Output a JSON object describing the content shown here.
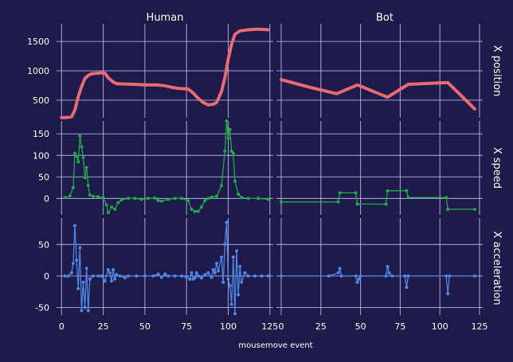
{
  "chart_data": {
    "type": "line",
    "xlabel": "mousemove event",
    "xticks": [
      0,
      25,
      50,
      75,
      100,
      125
    ],
    "xlim": [
      -3,
      127
    ],
    "columns": [
      "Human",
      "Bot"
    ],
    "grid": true,
    "colors": {
      "background": "#1e1a4a",
      "grid": "#b6b6e8",
      "position": "#e86b6f",
      "speed": "#21a84a",
      "acceleration": "#4f86e6"
    },
    "rows": [
      {
        "label": "X position",
        "color": "#e86b6f",
        "ylim": [
          200,
          1800
        ],
        "yticks": [
          "500",
          "1000",
          "1500"
        ],
        "ytick_values": [
          500,
          1000,
          1500
        ],
        "series": {
          "Human": [
            [
              0,
              200
            ],
            [
              3,
              205
            ],
            [
              6,
              215
            ],
            [
              8,
              330
            ],
            [
              10,
              560
            ],
            [
              12,
              730
            ],
            [
              14,
              870
            ],
            [
              16,
              920
            ],
            [
              18,
              950
            ],
            [
              21,
              960
            ],
            [
              24,
              965
            ],
            [
              26,
              960
            ],
            [
              28,
              880
            ],
            [
              31,
              810
            ],
            [
              33,
              780
            ],
            [
              38,
              775
            ],
            [
              44,
              770
            ],
            [
              50,
              760
            ],
            [
              58,
              758
            ],
            [
              62,
              745
            ],
            [
              66,
              720
            ],
            [
              70,
              700
            ],
            [
              76,
              690
            ],
            [
              79,
              620
            ],
            [
              82,
              530
            ],
            [
              85,
              460
            ],
            [
              88,
              420
            ],
            [
              91,
              430
            ],
            [
              93,
              460
            ],
            [
              96,
              650
            ],
            [
              98,
              880
            ],
            [
              100,
              1200
            ],
            [
              102,
              1450
            ],
            [
              104,
              1620
            ],
            [
              107,
              1680
            ],
            [
              112,
              1700
            ],
            [
              118,
              1710
            ],
            [
              124,
              1700
            ]
          ],
          "Bot": [
            [
              0,
              850
            ],
            [
              18,
              720
            ],
            [
              35,
              610
            ],
            [
              48,
              760
            ],
            [
              67,
              550
            ],
            [
              80,
              770
            ],
            [
              105,
              800
            ],
            [
              122,
              350
            ]
          ]
        }
      },
      {
        "label": "X speed",
        "color": "#21a84a",
        "ylim": [
          -38,
          180
        ],
        "yticks": [
          "0",
          "50",
          "100",
          "150"
        ],
        "ytick_values": [
          0,
          50,
          100,
          150
        ],
        "series": {
          "Human": [
            [
              2,
              2
            ],
            [
              5,
              6
            ],
            [
              7,
              25
            ],
            [
              8,
              105
            ],
            [
              9,
              98
            ],
            [
              10,
              85
            ],
            [
              11,
              145
            ],
            [
              12,
              120
            ],
            [
              13,
              95
            ],
            [
              14,
              48
            ],
            [
              15,
              72
            ],
            [
              16,
              30
            ],
            [
              17,
              8
            ],
            [
              19,
              5
            ],
            [
              22,
              4
            ],
            [
              25,
              2
            ],
            [
              27,
              -15
            ],
            [
              28,
              -33
            ],
            [
              30,
              -20
            ],
            [
              32,
              -25
            ],
            [
              34,
              -10
            ],
            [
              36,
              -3
            ],
            [
              40,
              0
            ],
            [
              44,
              0
            ],
            [
              48,
              -2
            ],
            [
              52,
              0
            ],
            [
              56,
              1
            ],
            [
              58,
              -5
            ],
            [
              60,
              -6
            ],
            [
              64,
              -2
            ],
            [
              68,
              0
            ],
            [
              72,
              0
            ],
            [
              76,
              -5
            ],
            [
              78,
              -25
            ],
            [
              80,
              -30
            ],
            [
              82,
              -30
            ],
            [
              84,
              -20
            ],
            [
              86,
              -5
            ],
            [
              88,
              0
            ],
            [
              90,
              3
            ],
            [
              93,
              5
            ],
            [
              96,
              30
            ],
            [
              98,
              110
            ],
            [
              99,
              180
            ],
            [
              100,
              140
            ],
            [
              101,
              160
            ],
            [
              102,
              110
            ],
            [
              103,
              105
            ],
            [
              104,
              40
            ],
            [
              106,
              10
            ],
            [
              108,
              2
            ],
            [
              112,
              0
            ],
            [
              118,
              0
            ],
            [
              124,
              -2
            ]
          ],
          "Bot": [
            [
              0,
              -8
            ],
            [
              36,
              -8
            ],
            [
              37,
              13
            ],
            [
              47,
              13
            ],
            [
              48,
              -13
            ],
            [
              66,
              -13
            ],
            [
              67,
              18
            ],
            [
              79,
              18
            ],
            [
              80,
              2
            ],
            [
              104,
              2
            ],
            [
              105,
              -25
            ],
            [
              122,
              -25
            ]
          ]
        }
      },
      {
        "label": "X acceleration",
        "color": "#4f86e6",
        "ylim": [
          -62,
          92
        ],
        "yticks": [
          "-50",
          "0",
          "50"
        ],
        "ytick_values": [
          -50,
          0,
          50
        ],
        "series": {
          "Human": [
            [
              2,
              0
            ],
            [
              4,
              0
            ],
            [
              6,
              5
            ],
            [
              7,
              20
            ],
            [
              8,
              80
            ],
            [
              9,
              25
            ],
            [
              10,
              -20
            ],
            [
              11,
              45
            ],
            [
              12,
              -55
            ],
            [
              13,
              -10
            ],
            [
              14,
              -50
            ],
            [
              15,
              12
            ],
            [
              16,
              -55
            ],
            [
              17,
              -5
            ],
            [
              19,
              0
            ],
            [
              22,
              0
            ],
            [
              24,
              0
            ],
            [
              26,
              -8
            ],
            [
              28,
              10
            ],
            [
              29,
              5
            ],
            [
              30,
              -8
            ],
            [
              31,
              10
            ],
            [
              32,
              -5
            ],
            [
              33,
              2
            ],
            [
              35,
              0
            ],
            [
              38,
              -3
            ],
            [
              40,
              0
            ],
            [
              45,
              0
            ],
            [
              50,
              0
            ],
            [
              55,
              0
            ],
            [
              58,
              3
            ],
            [
              60,
              -2
            ],
            [
              62,
              3
            ],
            [
              64,
              0
            ],
            [
              68,
              0
            ],
            [
              72,
              0
            ],
            [
              75,
              -2
            ],
            [
              77,
              -5
            ],
            [
              78,
              5
            ],
            [
              79,
              -5
            ],
            [
              80,
              -3
            ],
            [
              81,
              5
            ],
            [
              82,
              0
            ],
            [
              84,
              -3
            ],
            [
              86,
              2
            ],
            [
              88,
              5
            ],
            [
              90,
              -2
            ],
            [
              91,
              10
            ],
            [
              92,
              5
            ],
            [
              93,
              20
            ],
            [
              94,
              8
            ],
            [
              96,
              30
            ],
            [
              97,
              -10
            ],
            [
              98,
              50
            ],
            [
              99,
              85
            ],
            [
              100,
              -5
            ],
            [
              101,
              -15
            ],
            [
              102,
              -45
            ],
            [
              103,
              30
            ],
            [
              104,
              -60
            ],
            [
              105,
              40
            ],
            [
              106,
              -30
            ],
            [
              107,
              15
            ],
            [
              108,
              -10
            ],
            [
              110,
              5
            ],
            [
              112,
              0
            ],
            [
              116,
              0
            ],
            [
              120,
              0
            ],
            [
              124,
              0
            ]
          ],
          "Bot": [
            [
              0,
              0
            ],
            [
              30,
              0
            ],
            [
              36,
              5
            ],
            [
              37,
              12
            ],
            [
              38,
              0
            ],
            [
              47,
              0
            ],
            [
              48,
              -10
            ],
            [
              49,
              -5
            ],
            [
              50,
              0
            ],
            [
              66,
              0
            ],
            [
              67,
              15
            ],
            [
              68,
              5
            ],
            [
              70,
              0
            ],
            [
              78,
              0
            ],
            [
              79,
              -18
            ],
            [
              80,
              0
            ],
            [
              104,
              0
            ],
            [
              105,
              -28
            ],
            [
              106,
              0
            ],
            [
              122,
              0
            ]
          ]
        }
      }
    ]
  }
}
